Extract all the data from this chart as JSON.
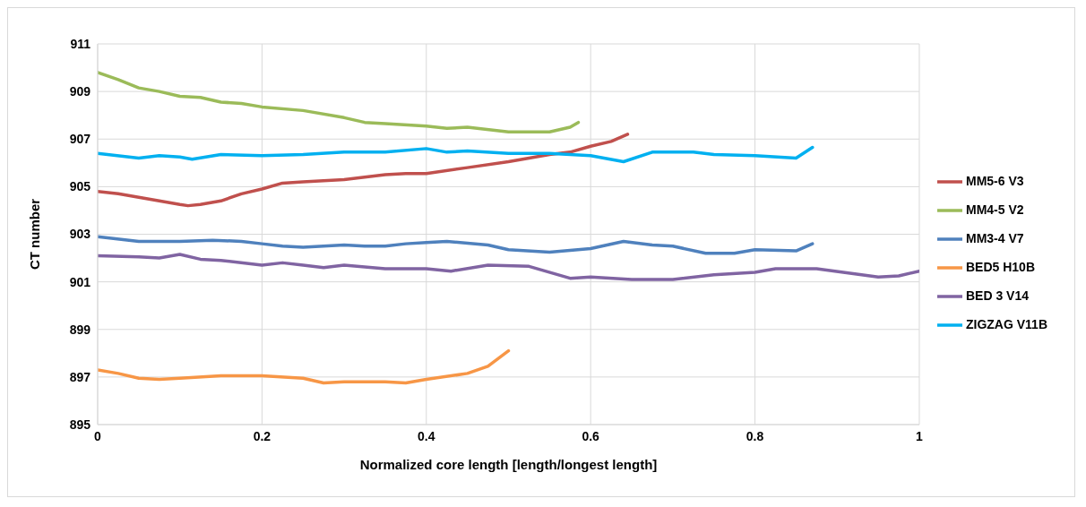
{
  "chart_data": {
    "type": "line",
    "xlabel": "Normalized core length [length/longest length]",
    "ylabel": "CT number",
    "xlim": [
      0,
      1
    ],
    "xticks": [
      0,
      0.2,
      0.4,
      0.6,
      0.8,
      1
    ],
    "ylim": [
      895,
      911
    ],
    "yticks": [
      895,
      897,
      899,
      901,
      903,
      905,
      907,
      909,
      911
    ],
    "grid": true,
    "legend": "right",
    "marker": "none",
    "line_style": "solid",
    "series": [
      {
        "name": "MM5-6 V3",
        "color": "#c0504d",
        "x": [
          0,
          0.025,
          0.05,
          0.075,
          0.1,
          0.11,
          0.125,
          0.15,
          0.175,
          0.2,
          0.225,
          0.25,
          0.3,
          0.35,
          0.375,
          0.4,
          0.45,
          0.5,
          0.525,
          0.55,
          0.575,
          0.6,
          0.625,
          0.645
        ],
        "values": [
          904.8,
          904.7,
          904.55,
          904.4,
          904.25,
          904.2,
          904.25,
          904.4,
          904.7,
          904.9,
          905.15,
          905.2,
          905.3,
          905.5,
          905.55,
          905.55,
          905.8,
          906.05,
          906.2,
          906.35,
          906.45,
          906.7,
          906.9,
          907.2
        ]
      },
      {
        "name": "MM4-5 V2",
        "color": "#9bbb59",
        "x": [
          0,
          0.025,
          0.05,
          0.075,
          0.1,
          0.125,
          0.15,
          0.175,
          0.2,
          0.25,
          0.3,
          0.325,
          0.35,
          0.4,
          0.425,
          0.45,
          0.5,
          0.55,
          0.575,
          0.585
        ],
        "values": [
          909.8,
          909.5,
          909.15,
          909.0,
          908.8,
          908.75,
          908.55,
          908.5,
          908.35,
          908.2,
          907.9,
          907.7,
          907.65,
          907.55,
          907.45,
          907.5,
          907.3,
          907.3,
          907.5,
          907.7
        ]
      },
      {
        "name": "MM3-4 V7",
        "color": "#4f81bd",
        "x": [
          0,
          0.05,
          0.1,
          0.14,
          0.175,
          0.2,
          0.225,
          0.25,
          0.3,
          0.325,
          0.35,
          0.375,
          0.4,
          0.425,
          0.475,
          0.5,
          0.55,
          0.6,
          0.64,
          0.675,
          0.7,
          0.74,
          0.775,
          0.8,
          0.85,
          0.87
        ],
        "values": [
          902.9,
          902.7,
          902.7,
          902.75,
          902.7,
          902.6,
          902.5,
          902.45,
          902.55,
          902.5,
          902.5,
          902.6,
          902.65,
          902.7,
          902.55,
          902.35,
          902.25,
          902.4,
          902.7,
          902.55,
          902.5,
          902.2,
          902.2,
          902.35,
          902.3,
          902.6
        ]
      },
      {
        "name": "BED5 H10B",
        "color": "#f79646",
        "x": [
          0,
          0.025,
          0.05,
          0.075,
          0.1,
          0.15,
          0.2,
          0.25,
          0.275,
          0.3,
          0.35,
          0.375,
          0.4,
          0.45,
          0.475,
          0.5
        ],
        "values": [
          897.3,
          897.15,
          896.95,
          896.9,
          896.95,
          897.05,
          897.05,
          896.95,
          896.75,
          896.8,
          896.8,
          896.75,
          896.9,
          897.15,
          897.45,
          898.1
        ]
      },
      {
        "name": "BED 3 V14",
        "color": "#8064a2",
        "x": [
          0,
          0.05,
          0.075,
          0.1,
          0.125,
          0.15,
          0.2,
          0.225,
          0.25,
          0.275,
          0.3,
          0.35,
          0.4,
          0.43,
          0.475,
          0.525,
          0.575,
          0.6,
          0.65,
          0.7,
          0.75,
          0.8,
          0.825,
          0.875,
          0.95,
          0.975,
          1
        ],
        "values": [
          902.1,
          902.05,
          902.0,
          902.15,
          901.95,
          901.9,
          901.7,
          901.8,
          901.7,
          901.6,
          901.7,
          901.55,
          901.55,
          901.45,
          901.7,
          901.65,
          901.15,
          901.2,
          901.1,
          901.1,
          901.3,
          901.4,
          901.55,
          901.55,
          901.2,
          901.25,
          901.45
        ]
      },
      {
        "name": "ZIGZAG V11B",
        "color": "#00b0f0",
        "x": [
          0,
          0.05,
          0.075,
          0.1,
          0.115,
          0.15,
          0.2,
          0.25,
          0.3,
          0.35,
          0.4,
          0.425,
          0.45,
          0.5,
          0.55,
          0.6,
          0.64,
          0.675,
          0.725,
          0.75,
          0.8,
          0.85,
          0.87
        ],
        "values": [
          906.4,
          906.2,
          906.3,
          906.25,
          906.15,
          906.35,
          906.3,
          906.35,
          906.45,
          906.45,
          906.6,
          906.45,
          906.5,
          906.4,
          906.4,
          906.3,
          906.05,
          906.45,
          906.45,
          906.35,
          906.3,
          906.2,
          906.65
        ]
      }
    ]
  }
}
